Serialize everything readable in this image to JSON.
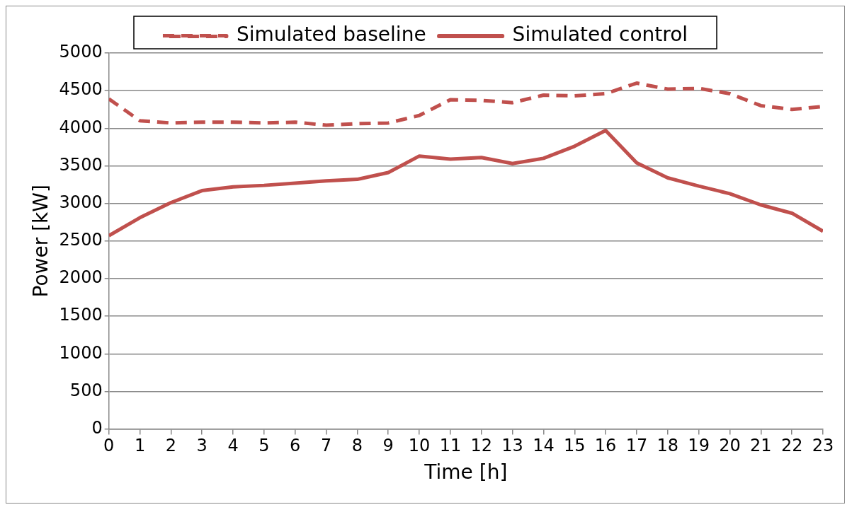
{
  "chart_data": {
    "type": "line",
    "xlabel": "Time [h]",
    "ylabel": "Power [kW]",
    "x": [
      0,
      1,
      2,
      3,
      4,
      5,
      6,
      7,
      8,
      9,
      10,
      11,
      12,
      13,
      14,
      15,
      16,
      17,
      18,
      19,
      20,
      21,
      22,
      23
    ],
    "series": [
      {
        "name": "Simulated baseline",
        "color": "#c0504d",
        "line_style": "dashed",
        "values": [
          4390,
          4100,
          4070,
          4080,
          4080,
          4070,
          4080,
          4040,
          4060,
          4070,
          4170,
          4380,
          4370,
          4340,
          4440,
          4430,
          4460,
          4600,
          4520,
          4530,
          4460,
          4300,
          4250,
          4290
        ]
      },
      {
        "name": "Simulated control",
        "color": "#c0504d",
        "line_style": "solid",
        "values": [
          2570,
          2810,
          3010,
          3170,
          3220,
          3240,
          3270,
          3300,
          3320,
          3410,
          3630,
          3590,
          3610,
          3530,
          3600,
          3760,
          3970,
          3540,
          3340,
          3230,
          3130,
          2980,
          2870,
          2630
        ]
      }
    ],
    "xlim": [
      0,
      23
    ],
    "xticks": [
      0,
      1,
      2,
      3,
      4,
      5,
      6,
      7,
      8,
      9,
      10,
      11,
      12,
      13,
      14,
      15,
      16,
      17,
      18,
      19,
      20,
      21,
      22,
      23
    ],
    "ylim": [
      0,
      5000
    ],
    "yticks": [
      0,
      500,
      1000,
      1500,
      2000,
      2500,
      3000,
      3500,
      4000,
      4500,
      5000
    ],
    "grid": "y",
    "legend": "top",
    "marker": "none"
  }
}
